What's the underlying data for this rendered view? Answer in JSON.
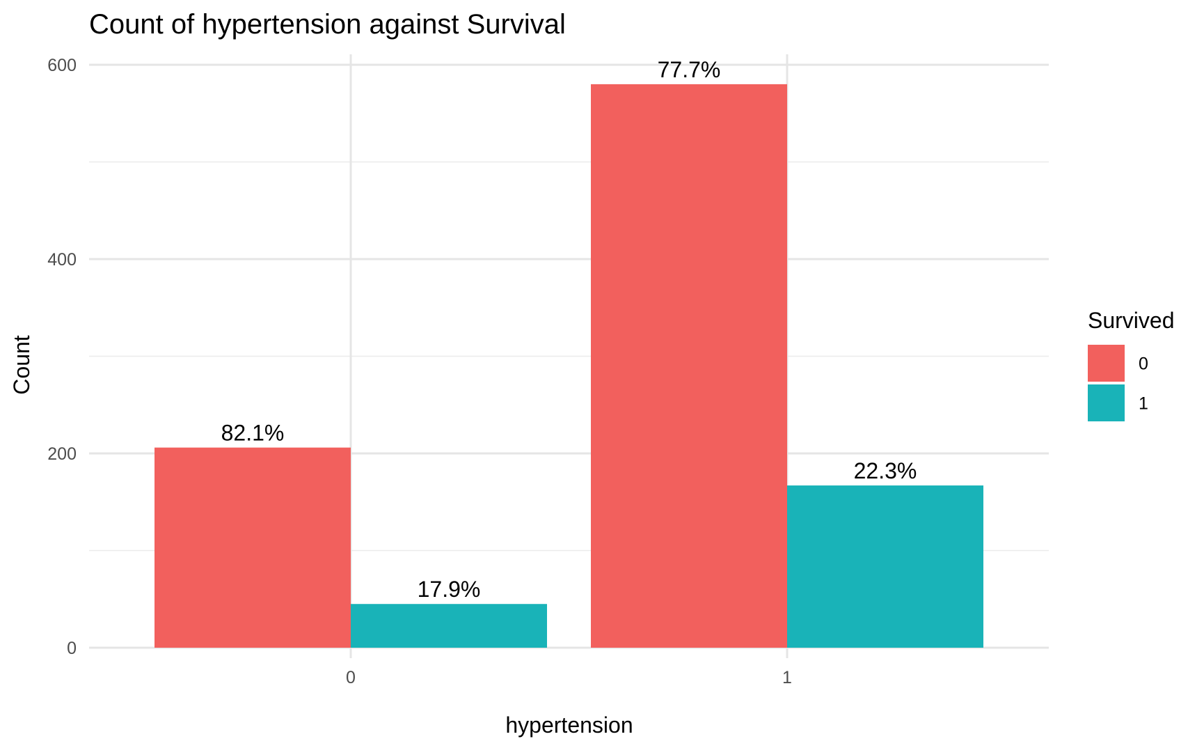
{
  "chart_data": {
    "type": "bar",
    "title": "Count of hypertension against Survival",
    "xlabel": "hypertension",
    "ylabel": "Count",
    "categories": [
      "0",
      "1"
    ],
    "ylim": [
      0,
      620
    ],
    "yticks": [
      0,
      200,
      400,
      600
    ],
    "grid": true,
    "legend": {
      "title": "Survived",
      "placement": "right"
    },
    "series": [
      {
        "name": "0",
        "color": "#F2605D",
        "values": [
          206,
          580
        ],
        "labels": [
          "82.1%",
          "77.7%"
        ]
      },
      {
        "name": "1",
        "color": "#19B3B8",
        "values": [
          45,
          167
        ],
        "labels": [
          "17.9%",
          "22.3%"
        ]
      }
    ]
  }
}
